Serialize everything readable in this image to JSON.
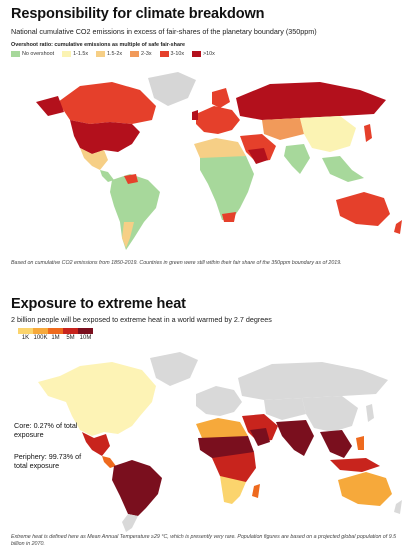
{
  "top": {
    "title": "Responsibility for climate breakdown",
    "subtitle": "National cumulative CO2 emissions in excess of fair-shares of the planetary boundary (350ppm)",
    "legend_title": "Overshoot ratio: cumulative emissions as multiple of safe fair-share",
    "legend": [
      {
        "label": "No overshoot",
        "color": "#a7d89b"
      },
      {
        "label": "1-1.5x",
        "color": "#fbf3b3"
      },
      {
        "label": "1.5-2x",
        "color": "#f6cf86"
      },
      {
        "label": "2-3x",
        "color": "#f19a5a"
      },
      {
        "label": "3-10x",
        "color": "#e5402b"
      },
      {
        "label": ">10x",
        "color": "#b3101c"
      }
    ],
    "footnote": "Based on cumulative CO2 emissions from 1850-2019. Countries in green were still within their fair share of the 350ppm boundary as of 2019.",
    "no_data_color": "#d6d6d6"
  },
  "bottom": {
    "title": "Exposure to extreme heat",
    "subtitle": "2 billion people will be exposed to extreme heat in a world warmed by 2.7 degrees",
    "legend": [
      {
        "label": "1K",
        "color": "#fbd46d"
      },
      {
        "label": "100K",
        "color": "#f6a93b"
      },
      {
        "label": "1M",
        "color": "#ee6a1e"
      },
      {
        "label": "5M",
        "color": "#c8241d"
      },
      {
        "label": "10M",
        "color": "#7a0f1e"
      }
    ],
    "core_label": "Core: 0.27% of total exposure",
    "periphery_label": "Periphery: 99.73% of total exposure",
    "footnote": "Extreme heat is defined here as Mean Annual Temperature ≥29 °C, which is presently very rare. Population figures are based on a projected global population of 9.5 billion in 2070.",
    "core_color": "#fdf3b5",
    "no_data_color": "#d9d9d9"
  }
}
